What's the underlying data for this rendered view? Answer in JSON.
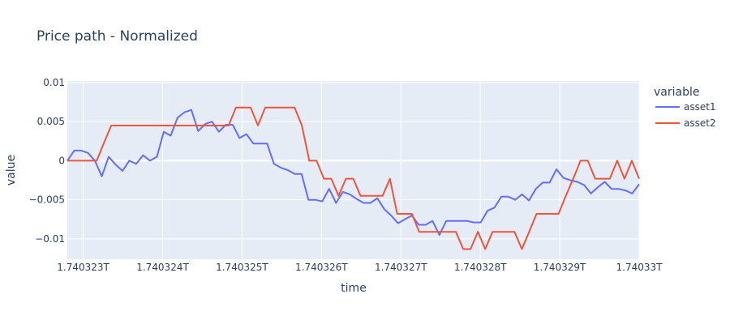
{
  "chart_data": {
    "type": "line",
    "title": "Price path - Normalized",
    "xlabel": "time",
    "ylabel": "value",
    "xlim": [
      1.7403228,
      1.74033
    ],
    "ylim": [
      -0.0126,
      0.0102
    ],
    "grid": true,
    "legend_title": "variable",
    "legend_position": "right",
    "x_ticks": [
      1.740323,
      1.740324,
      1.740325,
      1.740326,
      1.740327,
      1.740328,
      1.740329,
      1.74033
    ],
    "x_tick_labels": [
      "1.740323T",
      "1.740324T",
      "1.740325T",
      "1.740326T",
      "1.740327T",
      "1.740328T",
      "1.740329T",
      "1.74033T"
    ],
    "y_ticks": [
      0.01,
      0.005,
      0,
      -0.005,
      -0.01
    ],
    "y_tick_labels": [
      "0.01",
      "0.005",
      "0",
      "−0.005",
      "−0.01"
    ],
    "series": [
      {
        "name": "asset1",
        "color": "#636efa",
        "points": [
          [
            1.7403228,
            0.0
          ],
          [
            1.7403229,
            0.0013
          ],
          [
            1.740323,
            0.0013
          ],
          [
            1.7403231,
            0.001
          ],
          [
            1.7403232,
            0.0
          ],
          [
            1.7403233,
            -0.002
          ],
          [
            1.7403234,
            0.0005
          ],
          [
            1.7403235,
            -0.0005
          ],
          [
            1.7403236,
            -0.0013
          ],
          [
            1.7403237,
            0.0
          ],
          [
            1.7403238,
            -0.0004
          ],
          [
            1.7403239,
            0.0007
          ],
          [
            1.740324,
            0.0
          ],
          [
            1.7403241,
            0.0005
          ],
          [
            1.7403242,
            0.0037
          ],
          [
            1.7403243,
            0.0032
          ],
          [
            1.7403244,
            0.0055
          ],
          [
            1.7403245,
            0.0062
          ],
          [
            1.7403246,
            0.0065
          ],
          [
            1.7403247,
            0.0038
          ],
          [
            1.7403248,
            0.0047
          ],
          [
            1.7403249,
            0.005
          ],
          [
            1.740324,
            0.0
          ],
          [
            1.7403249,
            0.005
          ]
        ]
      },
      {
        "name": "asset2",
        "color": "#ef553b",
        "points": []
      }
    ],
    "series_values": {
      "asset1": [
        [
          1.7403228,
          0.0
        ],
        [
          1.7403229,
          0.0013
        ],
        [
          1.740323,
          0.0013
        ],
        [
          1.7403231,
          0.001
        ],
        [
          1.7403232,
          0.0
        ],
        [
          1.7403233,
          -0.002
        ],
        [
          1.7403234,
          0.0005
        ],
        [
          1.7403235,
          -0.0005
        ],
        [
          1.7403236,
          -0.0013
        ],
        [
          1.7403237,
          0.0
        ],
        [
          1.7403238,
          -0.0004
        ],
        [
          1.7403239,
          0.0007
        ],
        [
          1.740324,
          0.0
        ],
        [
          1.7403241,
          0.0005
        ],
        [
          1.7403242,
          0.0037
        ],
        [
          1.7403243,
          0.0032
        ],
        [
          1.7403244,
          0.0055
        ],
        [
          1.7403245,
          0.0062
        ],
        [
          1.7403246,
          0.0065
        ],
        [
          1.7403247,
          0.0038
        ],
        [
          1.7403248,
          0.0047
        ],
        [
          1.7403249,
          0.005
        ],
        [
          1.740325,
          0.0037
        ],
        [
          1.7403251,
          0.0046
        ],
        [
          1.7403252,
          0.0046
        ],
        [
          1.7403253,
          0.0029
        ],
        [
          1.7403254,
          0.0034
        ],
        [
          1.7403255,
          0.0022
        ],
        [
          1.7403256,
          0.0022
        ],
        [
          1.7403257,
          0.0022
        ],
        [
          1.7403258,
          -0.0004
        ],
        [
          1.7403259,
          -0.0009
        ],
        [
          1.740326,
          -0.0012
        ],
        [
          1.7403261,
          -0.0017
        ],
        [
          1.7403262,
          -0.0017
        ],
        [
          1.7403263,
          -0.005
        ],
        [
          1.7403264,
          -0.005
        ],
        [
          1.7403265,
          -0.0052
        ],
        [
          1.7403266,
          -0.0036
        ],
        [
          1.7403267,
          -0.0054
        ],
        [
          1.7403268,
          -0.004
        ],
        [
          1.7403269,
          -0.0043
        ],
        [
          1.740327,
          -0.0049
        ],
        [
          1.7403271,
          -0.0054
        ],
        [
          1.7403272,
          -0.0054
        ],
        [
          1.7403273,
          -0.0048
        ],
        [
          1.7403274,
          -0.0062
        ],
        [
          1.7403275,
          -0.007
        ],
        [
          1.7403276,
          -0.008
        ],
        [
          1.7403277,
          -0.0075
        ],
        [
          1.7403278,
          -0.007
        ],
        [
          1.7403279,
          -0.0082
        ],
        [
          1.740328,
          -0.0082
        ],
        [
          1.7403281,
          -0.0077
        ],
        [
          1.7403282,
          -0.0095
        ],
        [
          1.7403283,
          -0.0077
        ],
        [
          1.7403284,
          -0.0077
        ],
        [
          1.7403285,
          -0.0077
        ],
        [
          1.7403286,
          -0.0077
        ],
        [
          1.7403287,
          -0.0079
        ],
        [
          1.7403288,
          -0.0079
        ],
        [
          1.7403289,
          -0.0064
        ],
        [
          1.740329,
          -0.006
        ],
        [
          1.7403291,
          -0.0046
        ],
        [
          1.7403292,
          -0.0046
        ],
        [
          1.7403293,
          -0.005
        ],
        [
          1.7403294,
          -0.0043
        ],
        [
          1.7403295,
          -0.0051
        ],
        [
          1.7403296,
          -0.0036
        ],
        [
          1.7403297,
          -0.0028
        ],
        [
          1.7403298,
          -0.0028
        ],
        [
          1.7403299,
          -0.0011
        ],
        [
          1.74033,
          -0.0022
        ],
        [
          1.7403301,
          -0.0025
        ],
        [
          1.7403302,
          -0.0027
        ],
        [
          1.7403303,
          -0.0031
        ],
        [
          1.7403304,
          -0.0042
        ],
        [
          1.7403305,
          -0.0034
        ],
        [
          1.7403306,
          -0.0027
        ],
        [
          1.7403307,
          -0.0036
        ],
        [
          1.7403308,
          -0.0036
        ],
        [
          1.7403309,
          -0.0038
        ],
        [
          1.740331,
          -0.0042
        ],
        [
          1.7403311,
          -0.003
        ]
      ],
      "asset2": []
    }
  }
}
